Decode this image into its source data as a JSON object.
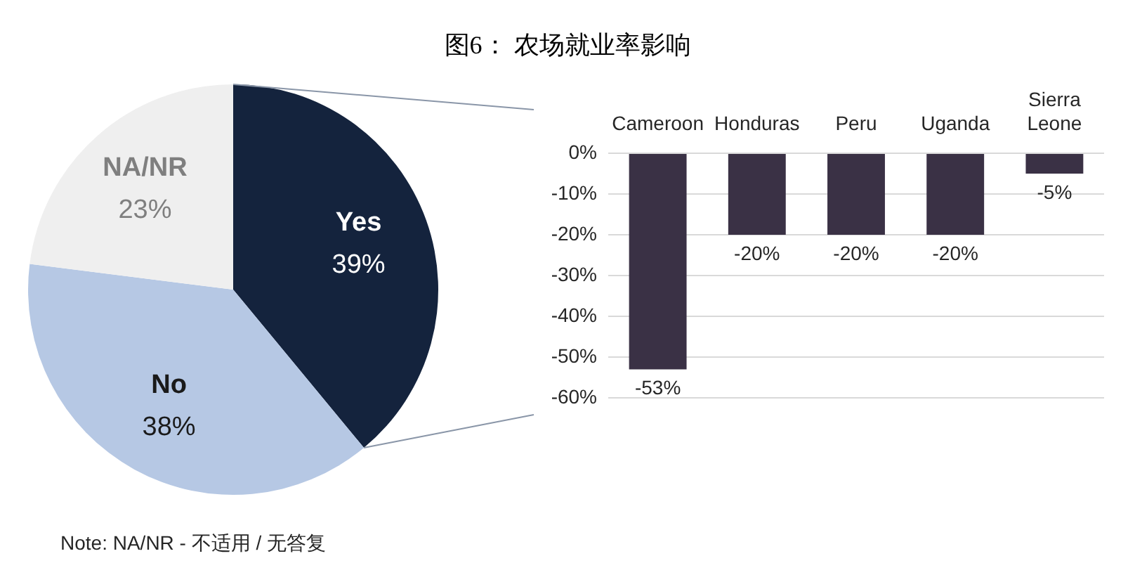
{
  "chart_data": [
    {
      "type": "pie",
      "title": "图6： 农场就业率影响",
      "categories": [
        "Yes",
        "No",
        "NA/NR"
      ],
      "values": [
        39,
        38,
        23
      ],
      "colors": [
        "#14233d",
        "#b6c8e4",
        "#efefef"
      ],
      "value_labels": [
        "39%",
        "38%",
        "23%"
      ],
      "annotations": [
        "Note: NA/NR - 不适用 / 无答复"
      ]
    },
    {
      "type": "bar",
      "categories": [
        "Cameroon",
        "Honduras",
        "Peru",
        "Uganda",
        "Sierra Leone"
      ],
      "values": [
        -53,
        -20,
        -20,
        -20,
        -5
      ],
      "color": "#3a3145",
      "ylim": [
        -60,
        0
      ],
      "yticks": [
        {
          "value": 0,
          "label": "0%"
        },
        {
          "value": -10,
          "label": "-10%"
        },
        {
          "value": -20,
          "label": "-20%"
        },
        {
          "value": -30,
          "label": "-30%"
        },
        {
          "value": -40,
          "label": "-40%"
        },
        {
          "value": -50,
          "label": "-50%"
        },
        {
          "value": -60,
          "label": "-60%"
        }
      ],
      "grid": "y",
      "value_labels": [
        "-53%",
        "-20%",
        "-20%",
        "-20%",
        "-5%"
      ]
    }
  ]
}
